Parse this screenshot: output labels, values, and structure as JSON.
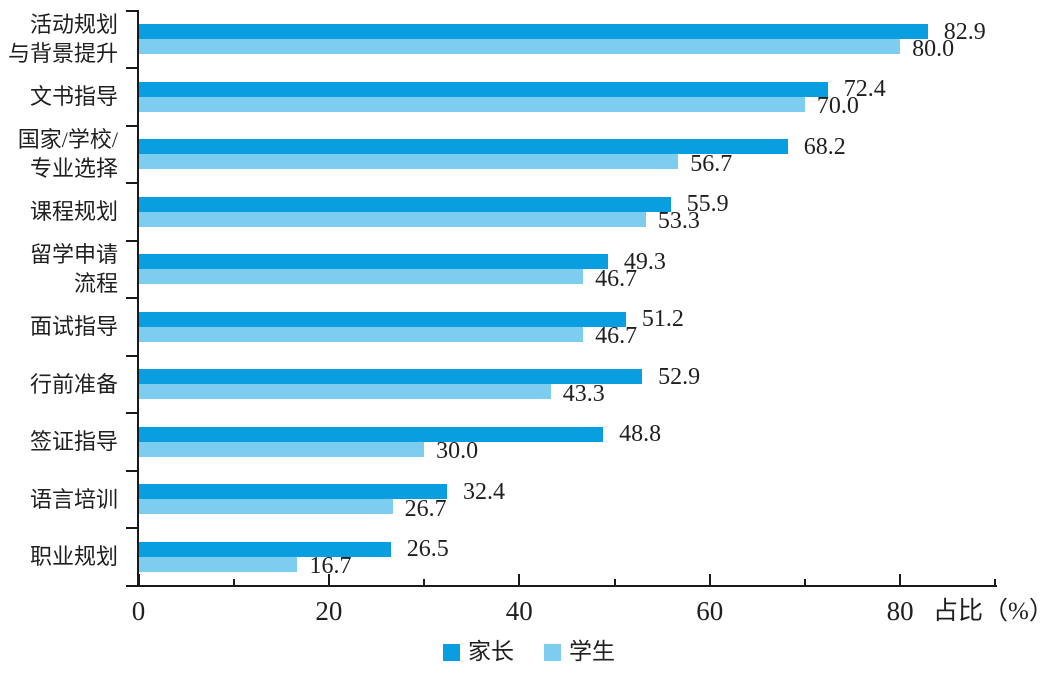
{
  "chart_data": {
    "type": "bar",
    "orientation": "horizontal",
    "title": "",
    "xlabel": "占比（%）",
    "xlim": [
      0,
      90.2
    ],
    "x_major_ticks": [
      0,
      20,
      40,
      60,
      80
    ],
    "x_minor_ticks": [
      10,
      30,
      50,
      70,
      90
    ],
    "grid": false,
    "value_labels": true,
    "legend_position": "bottom",
    "categories": [
      "活动规划\n与背景提升",
      "文书指导",
      "国家/学校/\n专业选择",
      "课程规划",
      "留学申请\n流程",
      "面试指导",
      "行前准备",
      "签证指导",
      "语言培训",
      "职业规划"
    ],
    "series": [
      {
        "name": "家长",
        "color": "#089EE0",
        "values": [
          82.9,
          72.4,
          68.2,
          55.9,
          49.3,
          51.2,
          52.9,
          48.8,
          32.4,
          26.5
        ]
      },
      {
        "name": "学生",
        "color": "#7DCDF0",
        "values": [
          80.0,
          70.0,
          56.7,
          53.3,
          46.7,
          46.7,
          43.3,
          30.0,
          26.7,
          16.7
        ]
      }
    ]
  }
}
